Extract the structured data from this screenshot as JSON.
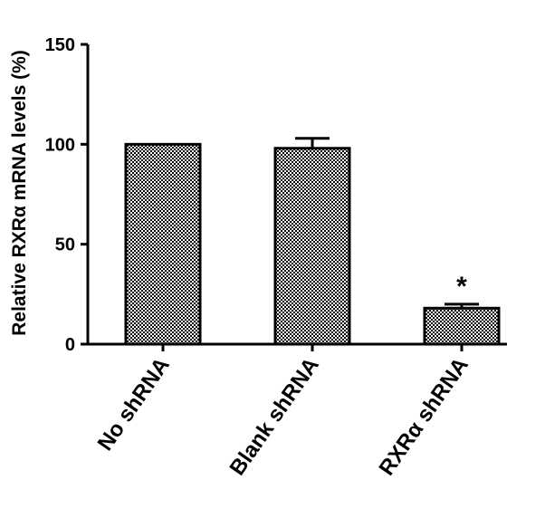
{
  "chart_data": {
    "type": "bar",
    "title": "",
    "xlabel": "",
    "ylabel": "Relative RXRα mRNA levels (%)",
    "categories": [
      "No shRNA",
      "Blank shRNA",
      "RXRα shRNA"
    ],
    "values": [
      100,
      98,
      18
    ],
    "error_upper": [
      0,
      5,
      2
    ],
    "annotations": [
      "",
      "",
      "*"
    ],
    "ylim": [
      0,
      150
    ],
    "yticks": [
      0,
      50,
      100,
      150
    ],
    "ytick_labels": [
      "0",
      "50",
      "100",
      "150"
    ],
    "grid": false,
    "legend": "none",
    "bar_fill": "checkered",
    "colors": {
      "bar_pattern_dark": "#000000",
      "bar_pattern_light": "#ffffff",
      "axis": "#000000"
    }
  }
}
